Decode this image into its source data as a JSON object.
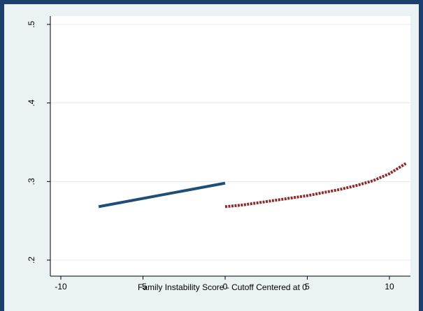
{
  "chart_data": {
    "type": "line",
    "title": "",
    "xlabel": "Family Instability Score - Cutoff Centered at 0",
    "ylabel": "",
    "xlim": [
      -11,
      11
    ],
    "ylim": [
      0.2,
      0.5
    ],
    "x_ticks": [
      -10,
      -5,
      0,
      5,
      10
    ],
    "x_tick_labels": [
      "-10",
      "-5",
      "0",
      "5",
      "10"
    ],
    "y_ticks": [
      0.2,
      0.3,
      0.4,
      0.5
    ],
    "y_tick_labels": [
      ".2",
      ".3",
      ".4",
      ".5"
    ],
    "grid": "horizontal",
    "legend": "none",
    "series": [
      {
        "style": "solid",
        "color": "#1f4e79",
        "x": [
          -7.7,
          0
        ],
        "y": [
          0.268,
          0.298
        ]
      },
      {
        "style": "dashed",
        "color": "#8b2b2b",
        "x": [
          0,
          1,
          2,
          3,
          4,
          5,
          6,
          7,
          8,
          9,
          10,
          11
        ],
        "y": [
          0.268,
          0.27,
          0.273,
          0.276,
          0.279,
          0.282,
          0.286,
          0.29,
          0.295,
          0.301,
          0.31,
          0.323
        ]
      }
    ]
  }
}
